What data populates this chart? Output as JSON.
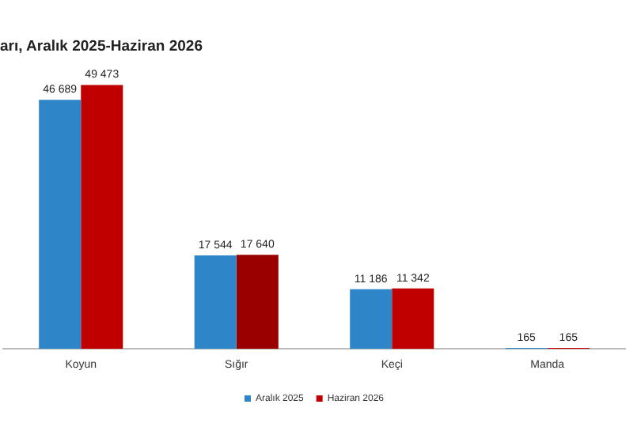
{
  "chart_data": {
    "type": "bar",
    "title": "arı, Aralık 2025-Haziran 2026",
    "categories": [
      "Koyun",
      "Sığır",
      "Keçi",
      "Manda"
    ],
    "series": [
      {
        "name": "Aralık 2025",
        "color": "#2e86c8",
        "values": [
          46689,
          17544,
          11186,
          165
        ]
      },
      {
        "name": "Haziran 2026",
        "color": "#c00000",
        "colors": [
          "#c00000",
          "#9a0000",
          "#c00000",
          "#c00000"
        ],
        "values": [
          49473,
          17640,
          11342,
          165
        ]
      }
    ],
    "value_labels": [
      [
        "46 689",
        "17 544",
        "11 186",
        "165"
      ],
      [
        "49 473",
        "17 640",
        "11 342",
        "165"
      ]
    ],
    "data_labels": true,
    "grid": false,
    "legend": "bottom"
  }
}
